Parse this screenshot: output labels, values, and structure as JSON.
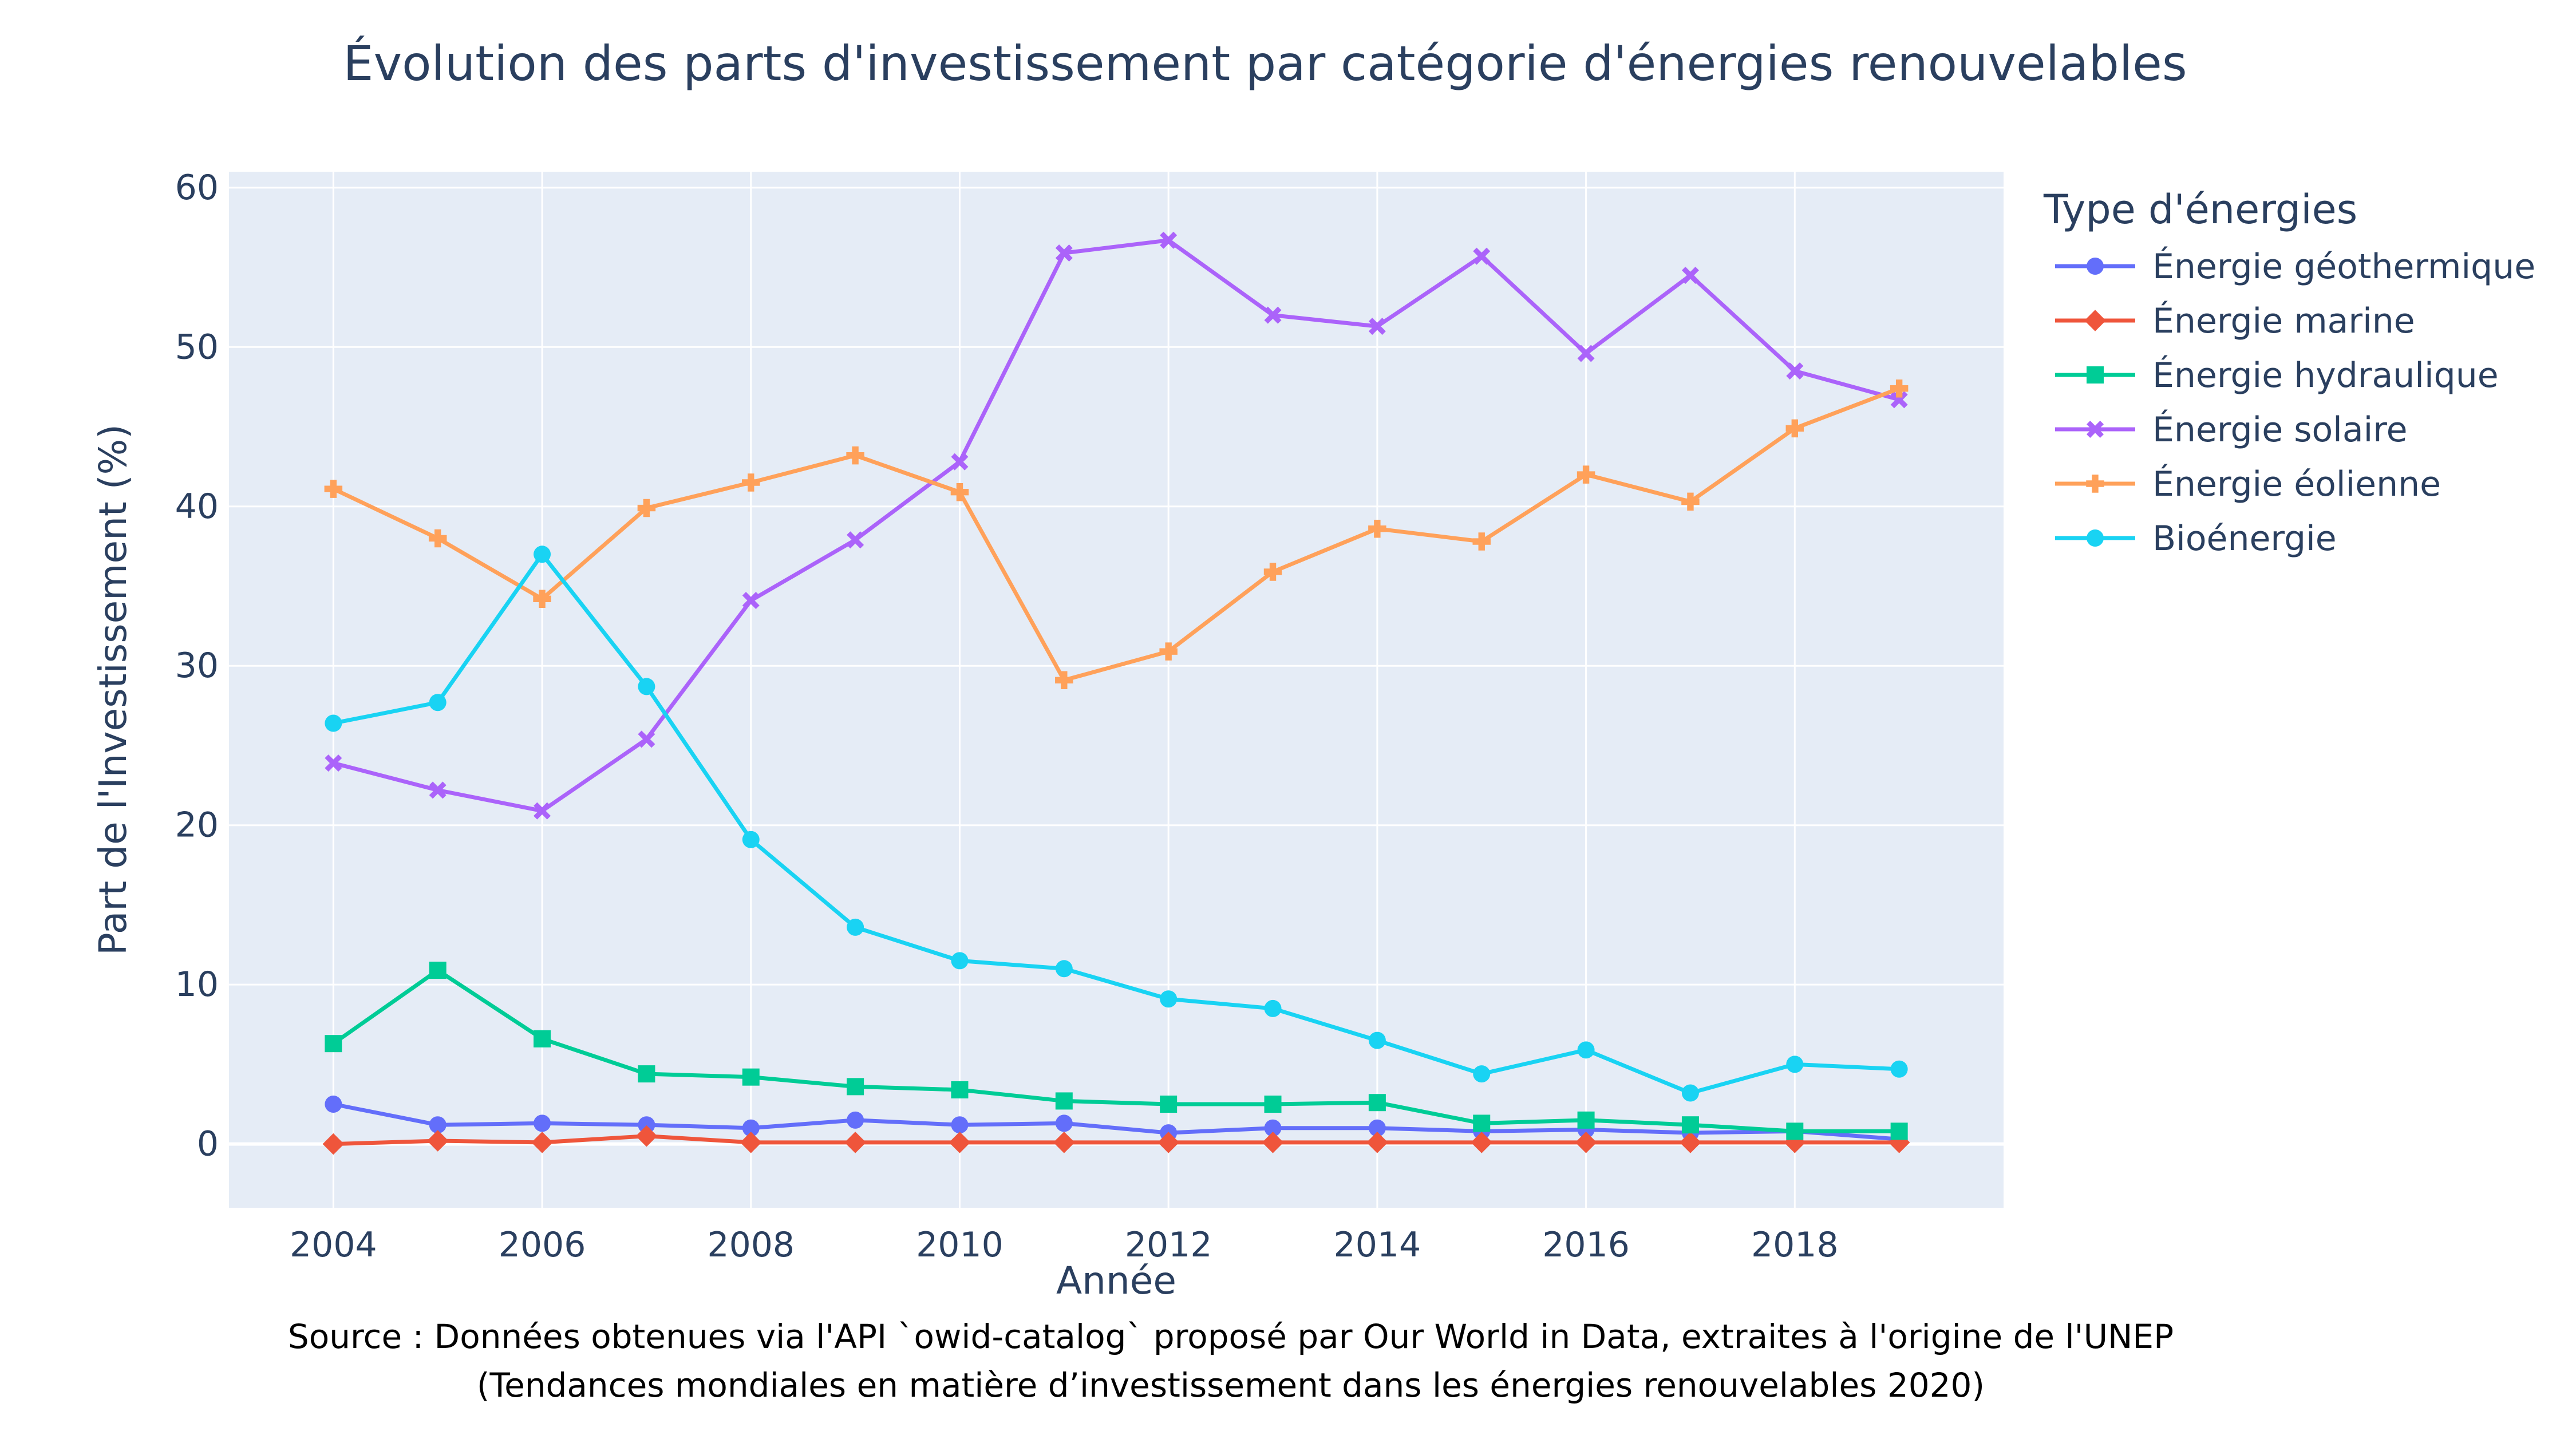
{
  "chart_data": {
    "type": "line",
    "title": "Évolution des parts d'investissement par catégorie d'énergies renouvelables",
    "xlabel": "Année",
    "ylabel": "Part de l'Investissement (%)",
    "x": [
      2004,
      2005,
      2006,
      2007,
      2008,
      2009,
      2010,
      2011,
      2012,
      2013,
      2014,
      2015,
      2016,
      2017,
      2018,
      2019
    ],
    "xlim": [
      2003,
      2020
    ],
    "ylim": [
      -4,
      61
    ],
    "xticks": [
      2004,
      2006,
      2008,
      2010,
      2012,
      2014,
      2016,
      2018
    ],
    "yticks": [
      0,
      10,
      20,
      30,
      40,
      50,
      60
    ],
    "grid": true,
    "legend": {
      "title": "Type d'énergies",
      "placement": "right"
    },
    "series": [
      {
        "name": "Énergie géothermique",
        "color": "#636efa",
        "marker": "circle",
        "values": [
          2.5,
          1.2,
          1.3,
          1.2,
          1.0,
          1.5,
          1.2,
          1.3,
          0.7,
          1.0,
          1.0,
          0.8,
          0.9,
          0.7,
          0.8,
          0.3
        ]
      },
      {
        "name": "Énergie marine",
        "color": "#ef553b",
        "marker": "diamond",
        "values": [
          0.0,
          0.2,
          0.1,
          0.5,
          0.1,
          0.1,
          0.1,
          0.1,
          0.1,
          0.1,
          0.1,
          0.1,
          0.1,
          0.1,
          0.1,
          0.1
        ]
      },
      {
        "name": "Énergie hydraulique",
        "color": "#00cc96",
        "marker": "square",
        "values": [
          6.3,
          10.9,
          6.6,
          4.4,
          4.2,
          3.6,
          3.4,
          2.7,
          2.5,
          2.5,
          2.6,
          1.3,
          1.5,
          1.2,
          0.8,
          0.8
        ]
      },
      {
        "name": "Énergie solaire",
        "color": "#ab63fa",
        "marker": "x",
        "values": [
          23.9,
          22.2,
          20.9,
          25.4,
          34.1,
          37.9,
          42.8,
          55.9,
          56.7,
          52.0,
          51.3,
          55.7,
          49.6,
          54.5,
          48.5,
          46.7
        ]
      },
      {
        "name": "Énergie éolienne",
        "color": "#ffa15a",
        "marker": "cross",
        "values": [
          41.1,
          38.0,
          34.2,
          39.9,
          41.5,
          43.2,
          40.9,
          29.1,
          30.9,
          35.9,
          38.6,
          37.8,
          42.0,
          40.3,
          44.9,
          47.4
        ]
      },
      {
        "name": "Bioénergie",
        "color": "#19d3f3",
        "marker": "circle",
        "values": [
          26.4,
          27.7,
          37.0,
          28.7,
          19.1,
          13.6,
          11.5,
          11.0,
          9.1,
          8.5,
          6.5,
          4.4,
          5.9,
          3.2,
          5.0,
          4.7
        ]
      }
    ]
  },
  "source": {
    "line1": "Source : Données obtenues via l'API `owid-catalog` proposé par Our World in Data, extraites à l'origine de l'UNEP",
    "line2": "(Tendances mondiales en matière d’investissement dans les énergies renouvelables 2020)"
  },
  "colors": {
    "plot_background": "#e5ecf6",
    "grid": "#ffffff",
    "text": "#2a3f5f"
  }
}
